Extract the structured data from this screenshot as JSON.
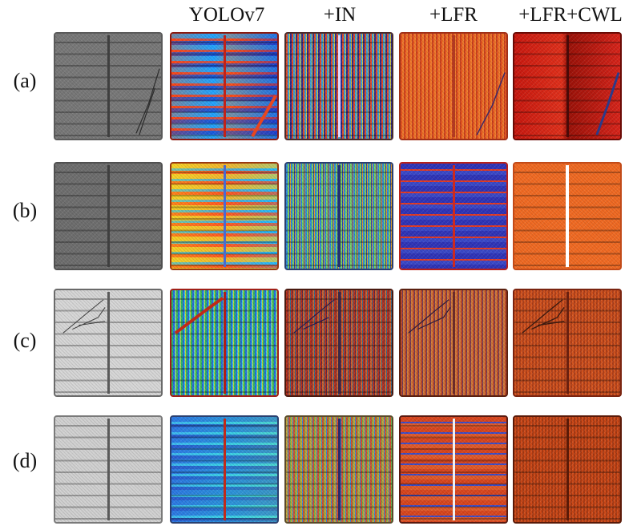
{
  "columns": [
    "YOLOv7",
    "+IN",
    "+LFR",
    "+LFR+CWL"
  ],
  "rows": [
    {
      "label": "(a)"
    },
    {
      "label": "(b)"
    },
    {
      "label": "(c)"
    },
    {
      "label": "(d)"
    }
  ]
}
